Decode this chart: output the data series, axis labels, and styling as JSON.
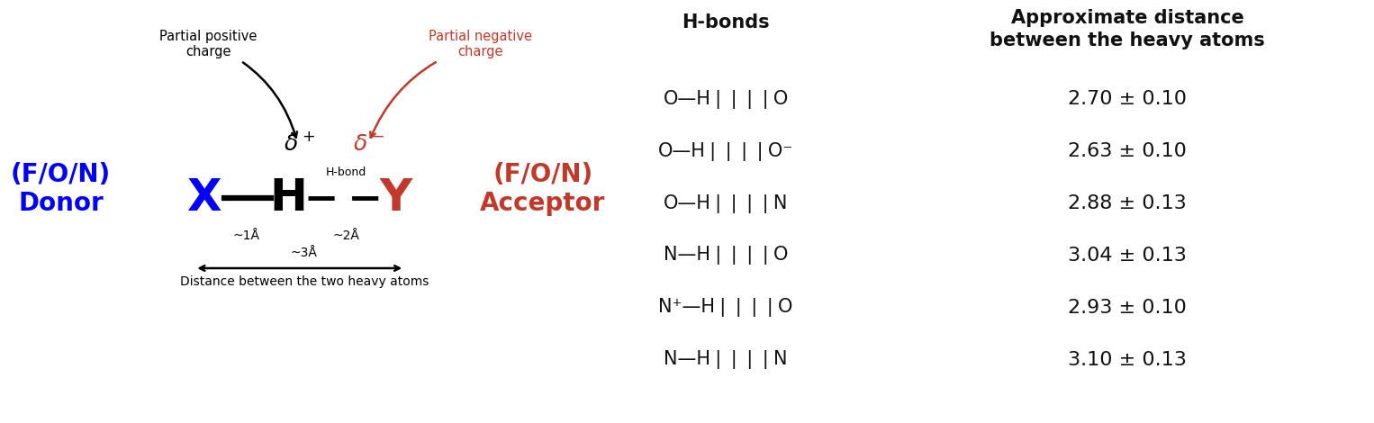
{
  "bg_color": "#ffffff",
  "left_panel": {
    "donor_color": "#0000FF",
    "acceptor_color": "#C0392B",
    "partial_neg_color": "#C0392B",
    "delta_minus_color": "#C0392B",
    "Y_color": "#C0392B",
    "partial_pos_text": "Partial positive\ncharge",
    "partial_neg_text": "Partial negative\ncharge",
    "dist1_label": "~1Å",
    "dist2_label": "~2Å",
    "dist3_label": "~3Å",
    "hbond_label": "H-bond",
    "distance_label": "Distance between the two heavy atoms"
  },
  "table": {
    "col1_header": "H-bonds",
    "col2_header": "Approximate distance\nbetween the heavy atoms",
    "bonds": [
      "O—H❘❘❘❘O",
      "O—H❘❘❘❘O⁻",
      "O—H❘❘❘❘N",
      "N—H❘❘❘❘O",
      "N⁺—H❘❘❘❘O",
      "N—H❘❘❘❘N"
    ],
    "dists": [
      "2.70 ± 0.10",
      "2.63 ± 0.10",
      "2.88 ± 0.13",
      "3.04 ± 0.13",
      "2.93 ± 0.10",
      "3.10 ± 0.13"
    ],
    "header_fontsize": 15,
    "row_fontsize": 15,
    "text_color": "#111111"
  }
}
